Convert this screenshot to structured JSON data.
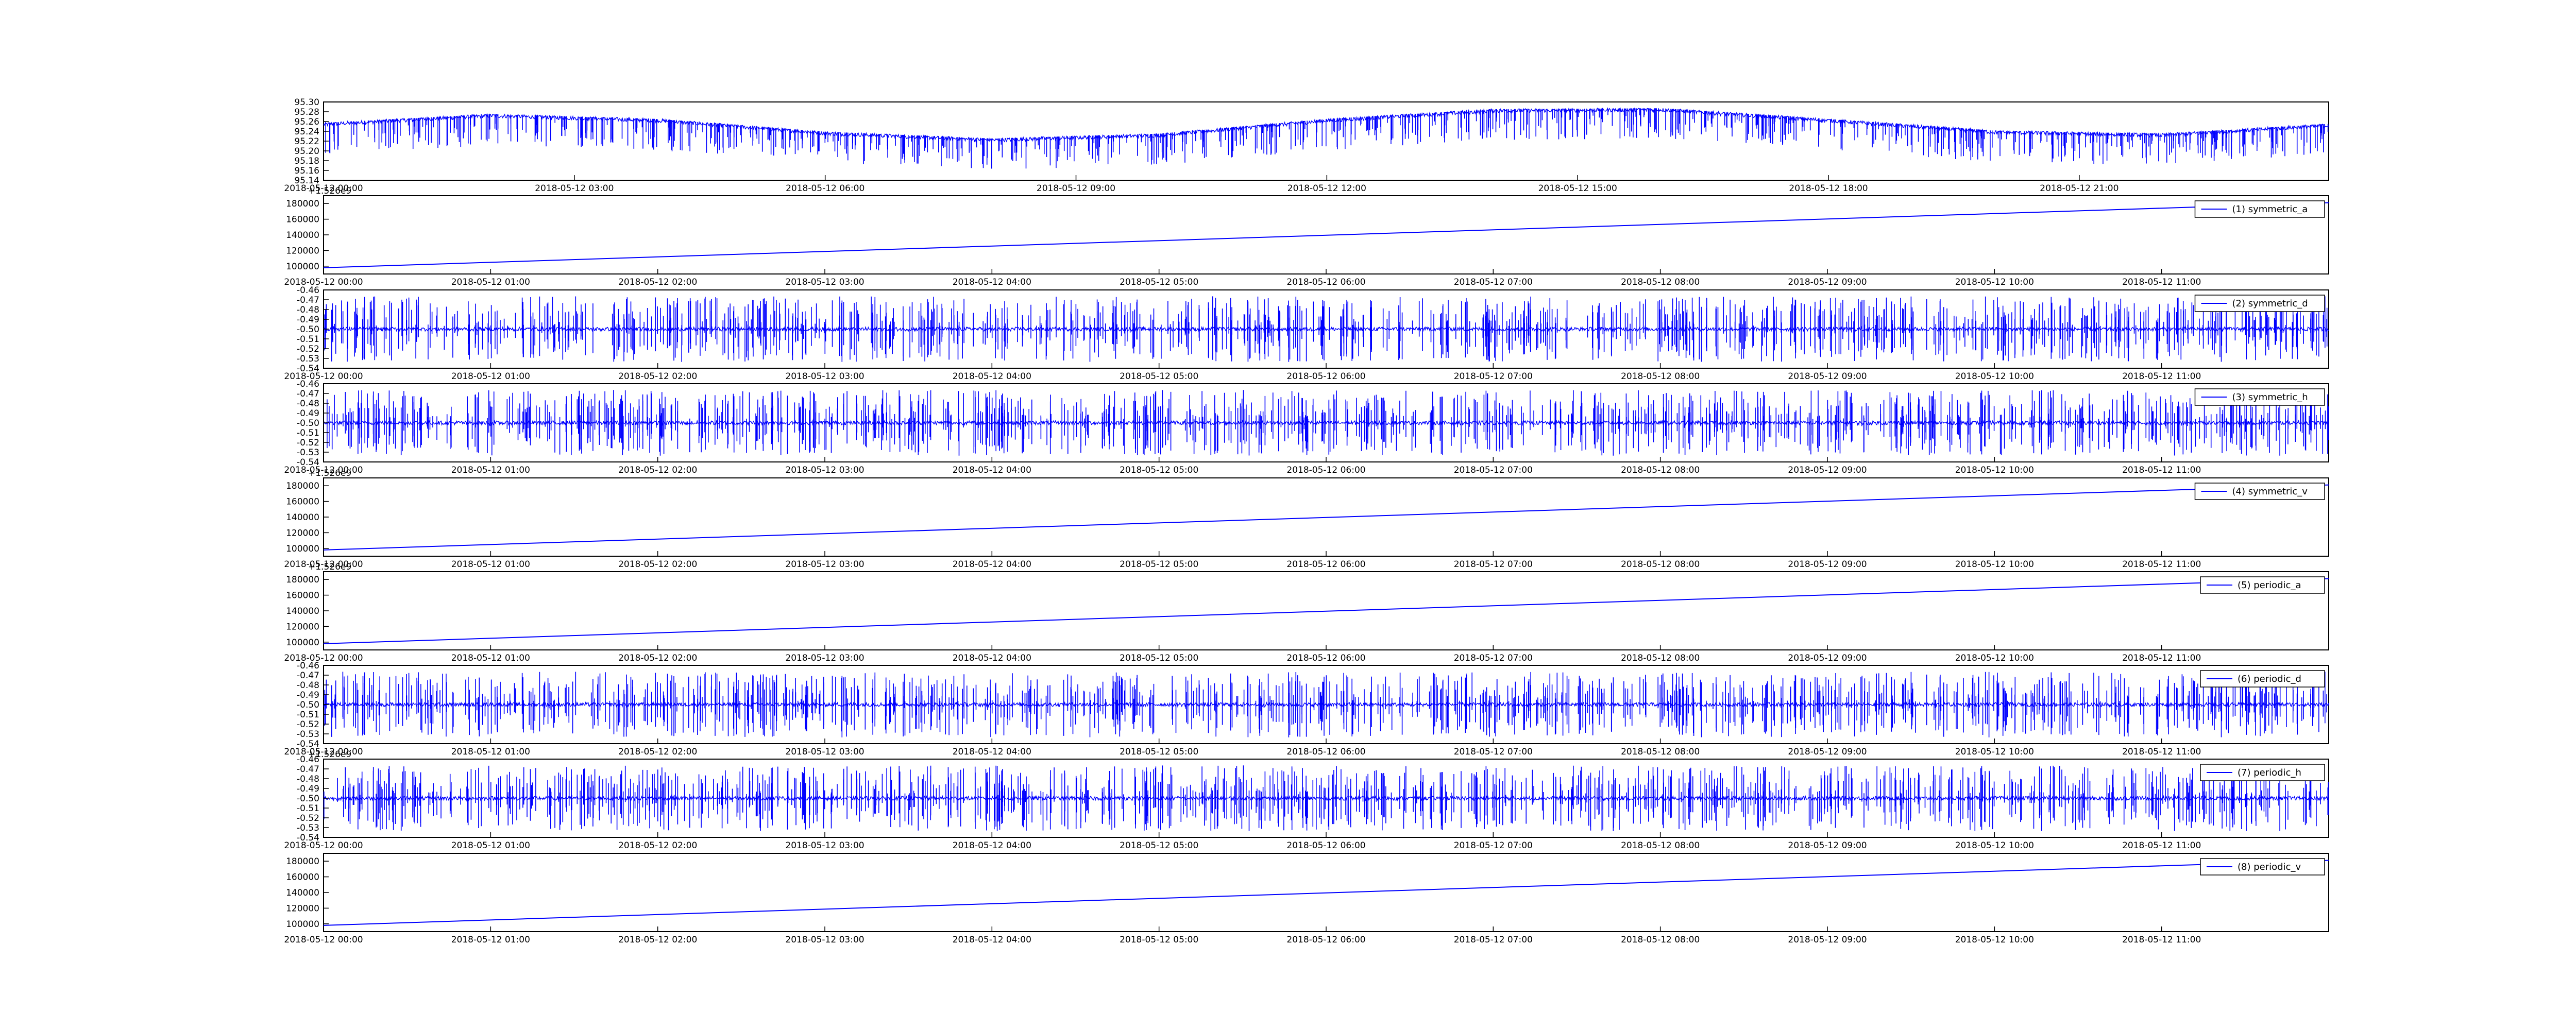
{
  "chart_data": [
    {
      "type": "line",
      "kind": "noisy",
      "title": "",
      "xlabel": "",
      "ylabel": "",
      "ylim": [
        95.14,
        95.3
      ],
      "yticks": [
        "95.30",
        "95.28",
        "95.26",
        "95.24",
        "95.22",
        "95.20",
        "95.18",
        "95.16",
        "95.14"
      ],
      "xticks": [
        "2018-05-12 00:00",
        "2018-05-12 03:00",
        "2018-05-12 06:00",
        "2018-05-12 09:00",
        "2018-05-12 12:00",
        "2018-05-12 15:00",
        "2018-05-12 18:00",
        "2018-05-12 21:00"
      ],
      "x_range": [
        "2018-05-12 00:00",
        "2018-05-12 23:59"
      ],
      "baseline": {
        "x": [
          "2018-05-12 00:00",
          "2018-05-12 02:00",
          "2018-05-12 04:00",
          "2018-05-12 06:00",
          "2018-05-12 08:00",
          "2018-05-12 10:00",
          "2018-05-12 12:00",
          "2018-05-12 14:00",
          "2018-05-12 16:00",
          "2018-05-12 18:00",
          "2018-05-12 20:00",
          "2018-05-12 22:00",
          "2018-05-12 23:59"
        ],
        "y": [
          95.254,
          95.272,
          95.262,
          95.236,
          95.222,
          95.232,
          95.262,
          95.282,
          95.284,
          95.262,
          95.238,
          95.232,
          95.252
        ]
      },
      "legend": null,
      "grid": false,
      "color": "#0000ff"
    },
    {
      "type": "line",
      "kind": "linear",
      "offset_label": "+1.526e9",
      "title": "",
      "xlabel": "",
      "ylabel": "",
      "ylim": [
        90000,
        190000
      ],
      "yticks": [
        "180000",
        "160000",
        "140000",
        "120000",
        "100000"
      ],
      "xticks": [
        "2018-05-12 00:00",
        "2018-05-12 01:00",
        "2018-05-12 02:00",
        "2018-05-12 03:00",
        "2018-05-12 04:00",
        "2018-05-12 05:00",
        "2018-05-12 06:00",
        "2018-05-12 07:00",
        "2018-05-12 08:00",
        "2018-05-12 09:00",
        "2018-05-12 10:00",
        "2018-05-12 11:00"
      ],
      "x_range": [
        "2018-05-12 00:00",
        "2018-05-12 12:00"
      ],
      "series": [
        {
          "name": "(1) symmetric_a",
          "x": [
            "2018-05-12 00:00",
            "2018-05-12 12:00"
          ],
          "y": [
            98000,
            181000
          ]
        }
      ],
      "legend": "top-right",
      "grid": false,
      "color": "#0000ff"
    },
    {
      "type": "line",
      "kind": "noisy",
      "title": "",
      "xlabel": "",
      "ylabel": "",
      "ylim": [
        -0.54,
        -0.46
      ],
      "yticks": [
        "-0.46",
        "-0.47",
        "-0.48",
        "-0.49",
        "-0.50",
        "-0.51",
        "-0.52",
        "-0.53",
        "-0.54"
      ],
      "xticks": [
        "2018-05-12 00:00",
        "2018-05-12 01:00",
        "2018-05-12 02:00",
        "2018-05-12 03:00",
        "2018-05-12 04:00",
        "2018-05-12 05:00",
        "2018-05-12 06:00",
        "2018-05-12 07:00",
        "2018-05-12 08:00",
        "2018-05-12 09:00",
        "2018-05-12 10:00",
        "2018-05-12 11:00"
      ],
      "x_range": [
        "2018-05-12 00:00",
        "2018-05-12 12:00"
      ],
      "baseline": {
        "x": [
          "2018-05-12 00:00",
          "2018-05-12 12:00"
        ],
        "y": [
          -0.5,
          -0.5
        ]
      },
      "series": [
        {
          "name": "(2) symmetric_d"
        }
      ],
      "legend": "top-right",
      "grid": false,
      "color": "#0000ff"
    },
    {
      "type": "line",
      "kind": "noisy",
      "title": "",
      "xlabel": "",
      "ylabel": "",
      "ylim": [
        -0.54,
        -0.46
      ],
      "yticks": [
        "-0.46",
        "-0.47",
        "-0.48",
        "-0.49",
        "-0.50",
        "-0.51",
        "-0.52",
        "-0.53",
        "-0.54"
      ],
      "xticks": [
        "2018-05-12 00:00",
        "2018-05-12 01:00",
        "2018-05-12 02:00",
        "2018-05-12 03:00",
        "2018-05-12 04:00",
        "2018-05-12 05:00",
        "2018-05-12 06:00",
        "2018-05-12 07:00",
        "2018-05-12 08:00",
        "2018-05-12 09:00",
        "2018-05-12 10:00",
        "2018-05-12 11:00"
      ],
      "x_range": [
        "2018-05-12 00:00",
        "2018-05-12 12:00"
      ],
      "baseline": {
        "x": [
          "2018-05-12 00:00",
          "2018-05-12 12:00"
        ],
        "y": [
          -0.5,
          -0.5
        ]
      },
      "series": [
        {
          "name": "(3) symmetric_h"
        }
      ],
      "legend": "top-right",
      "grid": false,
      "color": "#0000ff"
    },
    {
      "type": "line",
      "kind": "linear",
      "offset_label": "+1.526e9",
      "title": "",
      "xlabel": "",
      "ylabel": "",
      "ylim": [
        90000,
        190000
      ],
      "yticks": [
        "180000",
        "160000",
        "140000",
        "120000",
        "100000"
      ],
      "xticks": [
        "2018-05-12 00:00",
        "2018-05-12 01:00",
        "2018-05-12 02:00",
        "2018-05-12 03:00",
        "2018-05-12 04:00",
        "2018-05-12 05:00",
        "2018-05-12 06:00",
        "2018-05-12 07:00",
        "2018-05-12 08:00",
        "2018-05-12 09:00",
        "2018-05-12 10:00",
        "2018-05-12 11:00"
      ],
      "x_range": [
        "2018-05-12 00:00",
        "2018-05-12 12:00"
      ],
      "series": [
        {
          "name": "(4) symmetric_v",
          "x": [
            "2018-05-12 00:00",
            "2018-05-12 12:00"
          ],
          "y": [
            98000,
            181000
          ]
        }
      ],
      "legend": "top-right",
      "grid": false,
      "color": "#0000ff"
    },
    {
      "type": "line",
      "kind": "linear",
      "offset_label": "+1.526e9",
      "title": "",
      "xlabel": "",
      "ylabel": "",
      "ylim": [
        90000,
        190000
      ],
      "yticks": [
        "180000",
        "160000",
        "140000",
        "120000",
        "100000"
      ],
      "xticks": [
        "2018-05-12 00:00",
        "2018-05-12 01:00",
        "2018-05-12 02:00",
        "2018-05-12 03:00",
        "2018-05-12 04:00",
        "2018-05-12 05:00",
        "2018-05-12 06:00",
        "2018-05-12 07:00",
        "2018-05-12 08:00",
        "2018-05-12 09:00",
        "2018-05-12 10:00",
        "2018-05-12 11:00"
      ],
      "x_range": [
        "2018-05-12 00:00",
        "2018-05-12 12:00"
      ],
      "series": [
        {
          "name": "(5) periodic_a",
          "x": [
            "2018-05-12 00:00",
            "2018-05-12 12:00"
          ],
          "y": [
            98000,
            181000
          ]
        }
      ],
      "legend": "top-right",
      "grid": false,
      "color": "#0000ff"
    },
    {
      "type": "line",
      "kind": "noisy",
      "title": "",
      "xlabel": "",
      "ylabel": "",
      "ylim": [
        -0.54,
        -0.46
      ],
      "yticks": [
        "-0.46",
        "-0.47",
        "-0.48",
        "-0.49",
        "-0.50",
        "-0.51",
        "-0.52",
        "-0.53",
        "-0.54"
      ],
      "xticks": [
        "2018-05-12 00:00",
        "2018-05-12 01:00",
        "2018-05-12 02:00",
        "2018-05-12 03:00",
        "2018-05-12 04:00",
        "2018-05-12 05:00",
        "2018-05-12 06:00",
        "2018-05-12 07:00",
        "2018-05-12 08:00",
        "2018-05-12 09:00",
        "2018-05-12 10:00",
        "2018-05-12 11:00"
      ],
      "x_range": [
        "2018-05-12 00:00",
        "2018-05-12 12:00"
      ],
      "baseline": {
        "x": [
          "2018-05-12 00:00",
          "2018-05-12 12:00"
        ],
        "y": [
          -0.5,
          -0.5
        ]
      },
      "series": [
        {
          "name": "(6) periodic_d"
        }
      ],
      "legend": "top-right",
      "grid": false,
      "color": "#0000ff"
    },
    {
      "type": "line",
      "kind": "noisy",
      "offset_label": "+1.526e9",
      "title": "",
      "xlabel": "",
      "ylabel": "",
      "ylim": [
        -0.54,
        -0.46
      ],
      "yticks": [
        "-0.46",
        "-0.47",
        "-0.48",
        "-0.49",
        "-0.50",
        "-0.51",
        "-0.52",
        "-0.53",
        "-0.54"
      ],
      "xticks": [
        "2018-05-12 00:00",
        "2018-05-12 01:00",
        "2018-05-12 02:00",
        "2018-05-12 03:00",
        "2018-05-12 04:00",
        "2018-05-12 05:00",
        "2018-05-12 06:00",
        "2018-05-12 07:00",
        "2018-05-12 08:00",
        "2018-05-12 09:00",
        "2018-05-12 10:00",
        "2018-05-12 11:00"
      ],
      "x_range": [
        "2018-05-12 00:00",
        "2018-05-12 12:00"
      ],
      "baseline": {
        "x": [
          "2018-05-12 00:00",
          "2018-05-12 12:00"
        ],
        "y": [
          -0.5,
          -0.5
        ]
      },
      "series": [
        {
          "name": "(7) periodic_h"
        }
      ],
      "legend": "top-right",
      "grid": false,
      "color": "#0000ff"
    },
    {
      "type": "line",
      "kind": "linear",
      "title": "",
      "xlabel": "",
      "ylabel": "",
      "ylim": [
        90000,
        190000
      ],
      "yticks": [
        "180000",
        "160000",
        "140000",
        "120000",
        "100000"
      ],
      "xticks": [
        "2018-05-12 00:00",
        "2018-05-12 01:00",
        "2018-05-12 02:00",
        "2018-05-12 03:00",
        "2018-05-12 04:00",
        "2018-05-12 05:00",
        "2018-05-12 06:00",
        "2018-05-12 07:00",
        "2018-05-12 08:00",
        "2018-05-12 09:00",
        "2018-05-12 10:00",
        "2018-05-12 11:00"
      ],
      "x_range": [
        "2018-05-12 00:00",
        "2018-05-12 12:00"
      ],
      "series": [
        {
          "name": "(8) periodic_v",
          "x": [
            "2018-05-12 00:00",
            "2018-05-12 12:00"
          ],
          "y": [
            98000,
            181000
          ]
        }
      ],
      "legend": "top-right",
      "grid": false,
      "color": "#0000ff"
    }
  ]
}
